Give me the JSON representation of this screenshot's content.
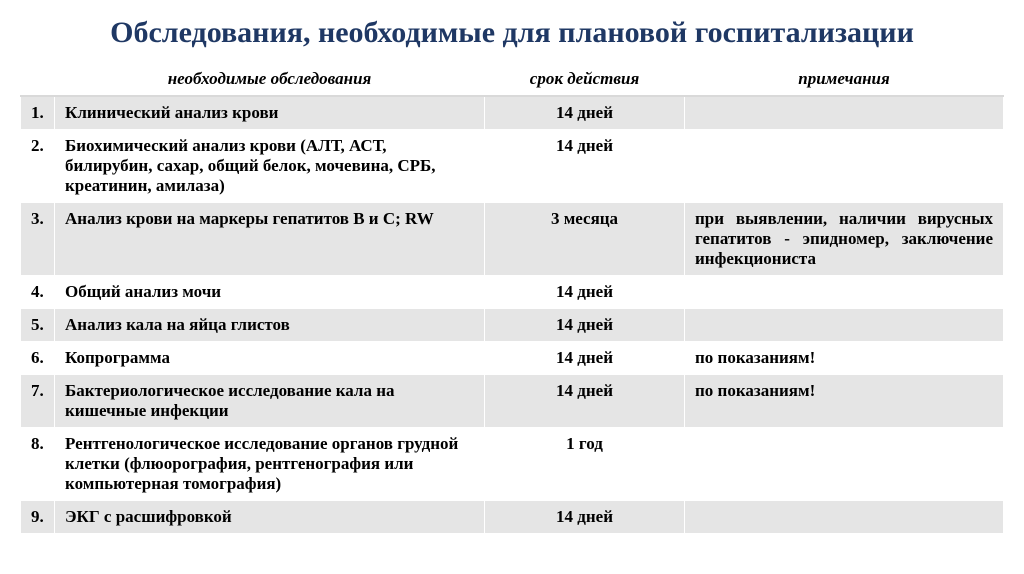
{
  "title": "Обследования, необходимые для плановой госпитализации",
  "headers": {
    "num": "",
    "exam": "необходимые обследования",
    "validity": "срок действия",
    "note": "примечания"
  },
  "rows": [
    {
      "num": "1.",
      "exam": "Клинический анализ крови",
      "validity": "14 дней",
      "note": ""
    },
    {
      "num": "2.",
      "exam": "Биохимический анализ крови (АЛТ, АСТ, билирубин, сахар, общий белок, мочевина, СРБ, креатинин, амилаза)",
      "validity": "14 дней",
      "note": ""
    },
    {
      "num": "3.",
      "exam": "Анализ крови на маркеры гепатитов В и С; RW",
      "validity": "3 месяца",
      "note": "при выявлении, наличии вирусных гепатитов - эпидномер, заключение инфекциониста"
    },
    {
      "num": "4.",
      "exam": "Общий анализ мочи",
      "validity": "14 дней",
      "note": ""
    },
    {
      "num": "5.",
      "exam": "Анализ кала на яйца глистов",
      "validity": "14 дней",
      "note": ""
    },
    {
      "num": "6.",
      "exam": "Копрограмма",
      "validity": "14 дней",
      "note": "по показаниям!"
    },
    {
      "num": "7.",
      "exam": "Бактериологическое исследование кала на кишечные инфекции",
      "validity": "14 дней",
      "note": "по показаниям!"
    },
    {
      "num": "8.",
      "exam": "Рентгенологическое исследование органов грудной клетки (флюорография, рентгенография или компьютерная томография)",
      "validity": "1 год",
      "note": ""
    },
    {
      "num": "9.",
      "exam": "ЭКГ с расшифровкой",
      "validity": "14 дней",
      "note": ""
    }
  ]
}
